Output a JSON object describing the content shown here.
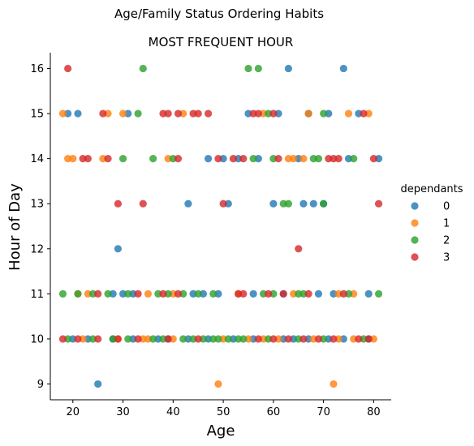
{
  "chart_data": {
    "type": "scatter",
    "suptitle": "Age/Family Status Ordering Habits",
    "title": "MOST FREQUENT HOUR",
    "xlabel": "Age",
    "ylabel": "Hour of Day",
    "xlim": [
      15.5,
      83.5
    ],
    "ylim": [
      8.65,
      16.35
    ],
    "xticks": [
      20,
      30,
      40,
      50,
      60,
      70,
      80
    ],
    "yticks": [
      9,
      10,
      11,
      12,
      13,
      14,
      15,
      16
    ],
    "grid": false,
    "legend": {
      "title": "dependants",
      "placement": "right"
    },
    "series": [
      {
        "name": "0",
        "color": "#1f77b4",
        "points": [
          [
            74,
            16
          ],
          [
            63,
            16
          ],
          [
            19,
            15
          ],
          [
            21,
            15
          ],
          [
            31,
            15
          ],
          [
            55,
            15
          ],
          [
            61,
            15
          ],
          [
            67,
            15
          ],
          [
            71,
            15
          ],
          [
            77,
            15
          ],
          [
            47,
            14
          ],
          [
            50,
            14
          ],
          [
            53,
            14
          ],
          [
            57,
            14
          ],
          [
            65,
            14
          ],
          [
            75,
            14
          ],
          [
            81,
            14
          ],
          [
            43,
            13
          ],
          [
            51,
            13
          ],
          [
            60,
            13
          ],
          [
            66,
            13
          ],
          [
            68,
            13
          ],
          [
            70,
            13
          ],
          [
            29,
            12
          ],
          [
            28,
            11
          ],
          [
            30,
            11
          ],
          [
            32,
            11
          ],
          [
            44,
            11
          ],
          [
            46,
            11
          ],
          [
            49,
            11
          ],
          [
            56,
            11
          ],
          [
            62,
            11
          ],
          [
            69,
            11
          ],
          [
            72,
            11
          ],
          [
            79,
            11
          ],
          [
            20,
            10
          ],
          [
            23,
            10
          ],
          [
            28,
            10
          ],
          [
            32,
            10
          ],
          [
            37,
            10
          ],
          [
            39,
            10
          ],
          [
            43,
            10
          ],
          [
            47,
            10
          ],
          [
            52,
            10
          ],
          [
            56,
            10
          ],
          [
            62,
            10
          ],
          [
            64,
            10
          ],
          [
            67,
            10
          ],
          [
            71,
            10
          ],
          [
            74,
            10
          ],
          [
            79,
            10
          ],
          [
            25,
            9
          ]
        ]
      },
      {
        "name": "1",
        "color": "#ff7f0e",
        "points": [
          [
            18,
            15
          ],
          [
            27,
            15
          ],
          [
            30,
            15
          ],
          [
            42,
            15
          ],
          [
            58,
            15
          ],
          [
            67,
            15
          ],
          [
            75,
            15
          ],
          [
            79,
            15
          ],
          [
            19,
            14
          ],
          [
            20,
            14
          ],
          [
            26,
            14
          ],
          [
            39,
            14
          ],
          [
            63,
            14
          ],
          [
            64,
            14
          ],
          [
            66,
            14
          ],
          [
            21,
            11
          ],
          [
            23,
            11
          ],
          [
            35,
            11
          ],
          [
            40,
            11
          ],
          [
            53,
            11
          ],
          [
            64,
            11
          ],
          [
            73,
            11
          ],
          [
            76,
            11
          ],
          [
            22,
            10
          ],
          [
            29,
            10
          ],
          [
            34,
            10
          ],
          [
            35,
            10
          ],
          [
            40,
            10
          ],
          [
            50,
            10
          ],
          [
            55,
            10
          ],
          [
            58,
            10
          ],
          [
            61,
            10
          ],
          [
            68,
            10
          ],
          [
            73,
            10
          ],
          [
            76,
            10
          ],
          [
            80,
            10
          ],
          [
            49,
            9
          ],
          [
            72,
            9
          ]
        ]
      },
      {
        "name": "2",
        "color": "#2ca02c",
        "points": [
          [
            34,
            16
          ],
          [
            55,
            16
          ],
          [
            57,
            16
          ],
          [
            33,
            15
          ],
          [
            59,
            15
          ],
          [
            70,
            15
          ],
          [
            30,
            14
          ],
          [
            36,
            14
          ],
          [
            40,
            14
          ],
          [
            56,
            14
          ],
          [
            60,
            14
          ],
          [
            68,
            14
          ],
          [
            69,
            14
          ],
          [
            76,
            14
          ],
          [
            62,
            13
          ],
          [
            63,
            13
          ],
          [
            70,
            13
          ],
          [
            18,
            11
          ],
          [
            21,
            11
          ],
          [
            24,
            11
          ],
          [
            27,
            11
          ],
          [
            31,
            11
          ],
          [
            37,
            11
          ],
          [
            39,
            11
          ],
          [
            42,
            11
          ],
          [
            45,
            11
          ],
          [
            48,
            11
          ],
          [
            58,
            11
          ],
          [
            60,
            11
          ],
          [
            65,
            11
          ],
          [
            66,
            11
          ],
          [
            75,
            11
          ],
          [
            81,
            11
          ],
          [
            19,
            10
          ],
          [
            24,
            10
          ],
          [
            28,
            10
          ],
          [
            31,
            10
          ],
          [
            36,
            10
          ],
          [
            38,
            10
          ],
          [
            42,
            10
          ],
          [
            44,
            10
          ],
          [
            46,
            10
          ],
          [
            48,
            10
          ],
          [
            49,
            10
          ],
          [
            51,
            10
          ],
          [
            53,
            10
          ],
          [
            54,
            10
          ],
          [
            59,
            10
          ],
          [
            65,
            10
          ],
          [
            70,
            10
          ],
          [
            78,
            10
          ]
        ]
      },
      {
        "name": "3",
        "color": "#d62728",
        "points": [
          [
            19,
            16
          ],
          [
            26,
            15
          ],
          [
            38,
            15
          ],
          [
            39,
            15
          ],
          [
            41,
            15
          ],
          [
            44,
            15
          ],
          [
            45,
            15
          ],
          [
            47,
            15
          ],
          [
            56,
            15
          ],
          [
            57,
            15
          ],
          [
            60,
            15
          ],
          [
            78,
            15
          ],
          [
            22,
            14
          ],
          [
            23,
            14
          ],
          [
            27,
            14
          ],
          [
            41,
            14
          ],
          [
            49,
            14
          ],
          [
            52,
            14
          ],
          [
            54,
            14
          ],
          [
            61,
            14
          ],
          [
            71,
            14
          ],
          [
            72,
            14
          ],
          [
            73,
            14
          ],
          [
            80,
            14
          ],
          [
            29,
            13
          ],
          [
            34,
            13
          ],
          [
            50,
            13
          ],
          [
            81,
            13
          ],
          [
            65,
            12
          ],
          [
            25,
            11
          ],
          [
            33,
            11
          ],
          [
            38,
            11
          ],
          [
            41,
            11
          ],
          [
            53,
            11
          ],
          [
            54,
            11
          ],
          [
            59,
            11
          ],
          [
            62,
            11
          ],
          [
            67,
            11
          ],
          [
            74,
            11
          ],
          [
            18,
            10
          ],
          [
            21,
            10
          ],
          [
            25,
            10
          ],
          [
            29,
            10
          ],
          [
            33,
            10
          ],
          [
            39,
            10
          ],
          [
            45,
            10
          ],
          [
            57,
            10
          ],
          [
            60,
            10
          ],
          [
            63,
            10
          ],
          [
            66,
            10
          ],
          [
            69,
            10
          ],
          [
            72,
            10
          ],
          [
            77,
            10
          ],
          [
            79,
            10
          ]
        ]
      }
    ]
  }
}
